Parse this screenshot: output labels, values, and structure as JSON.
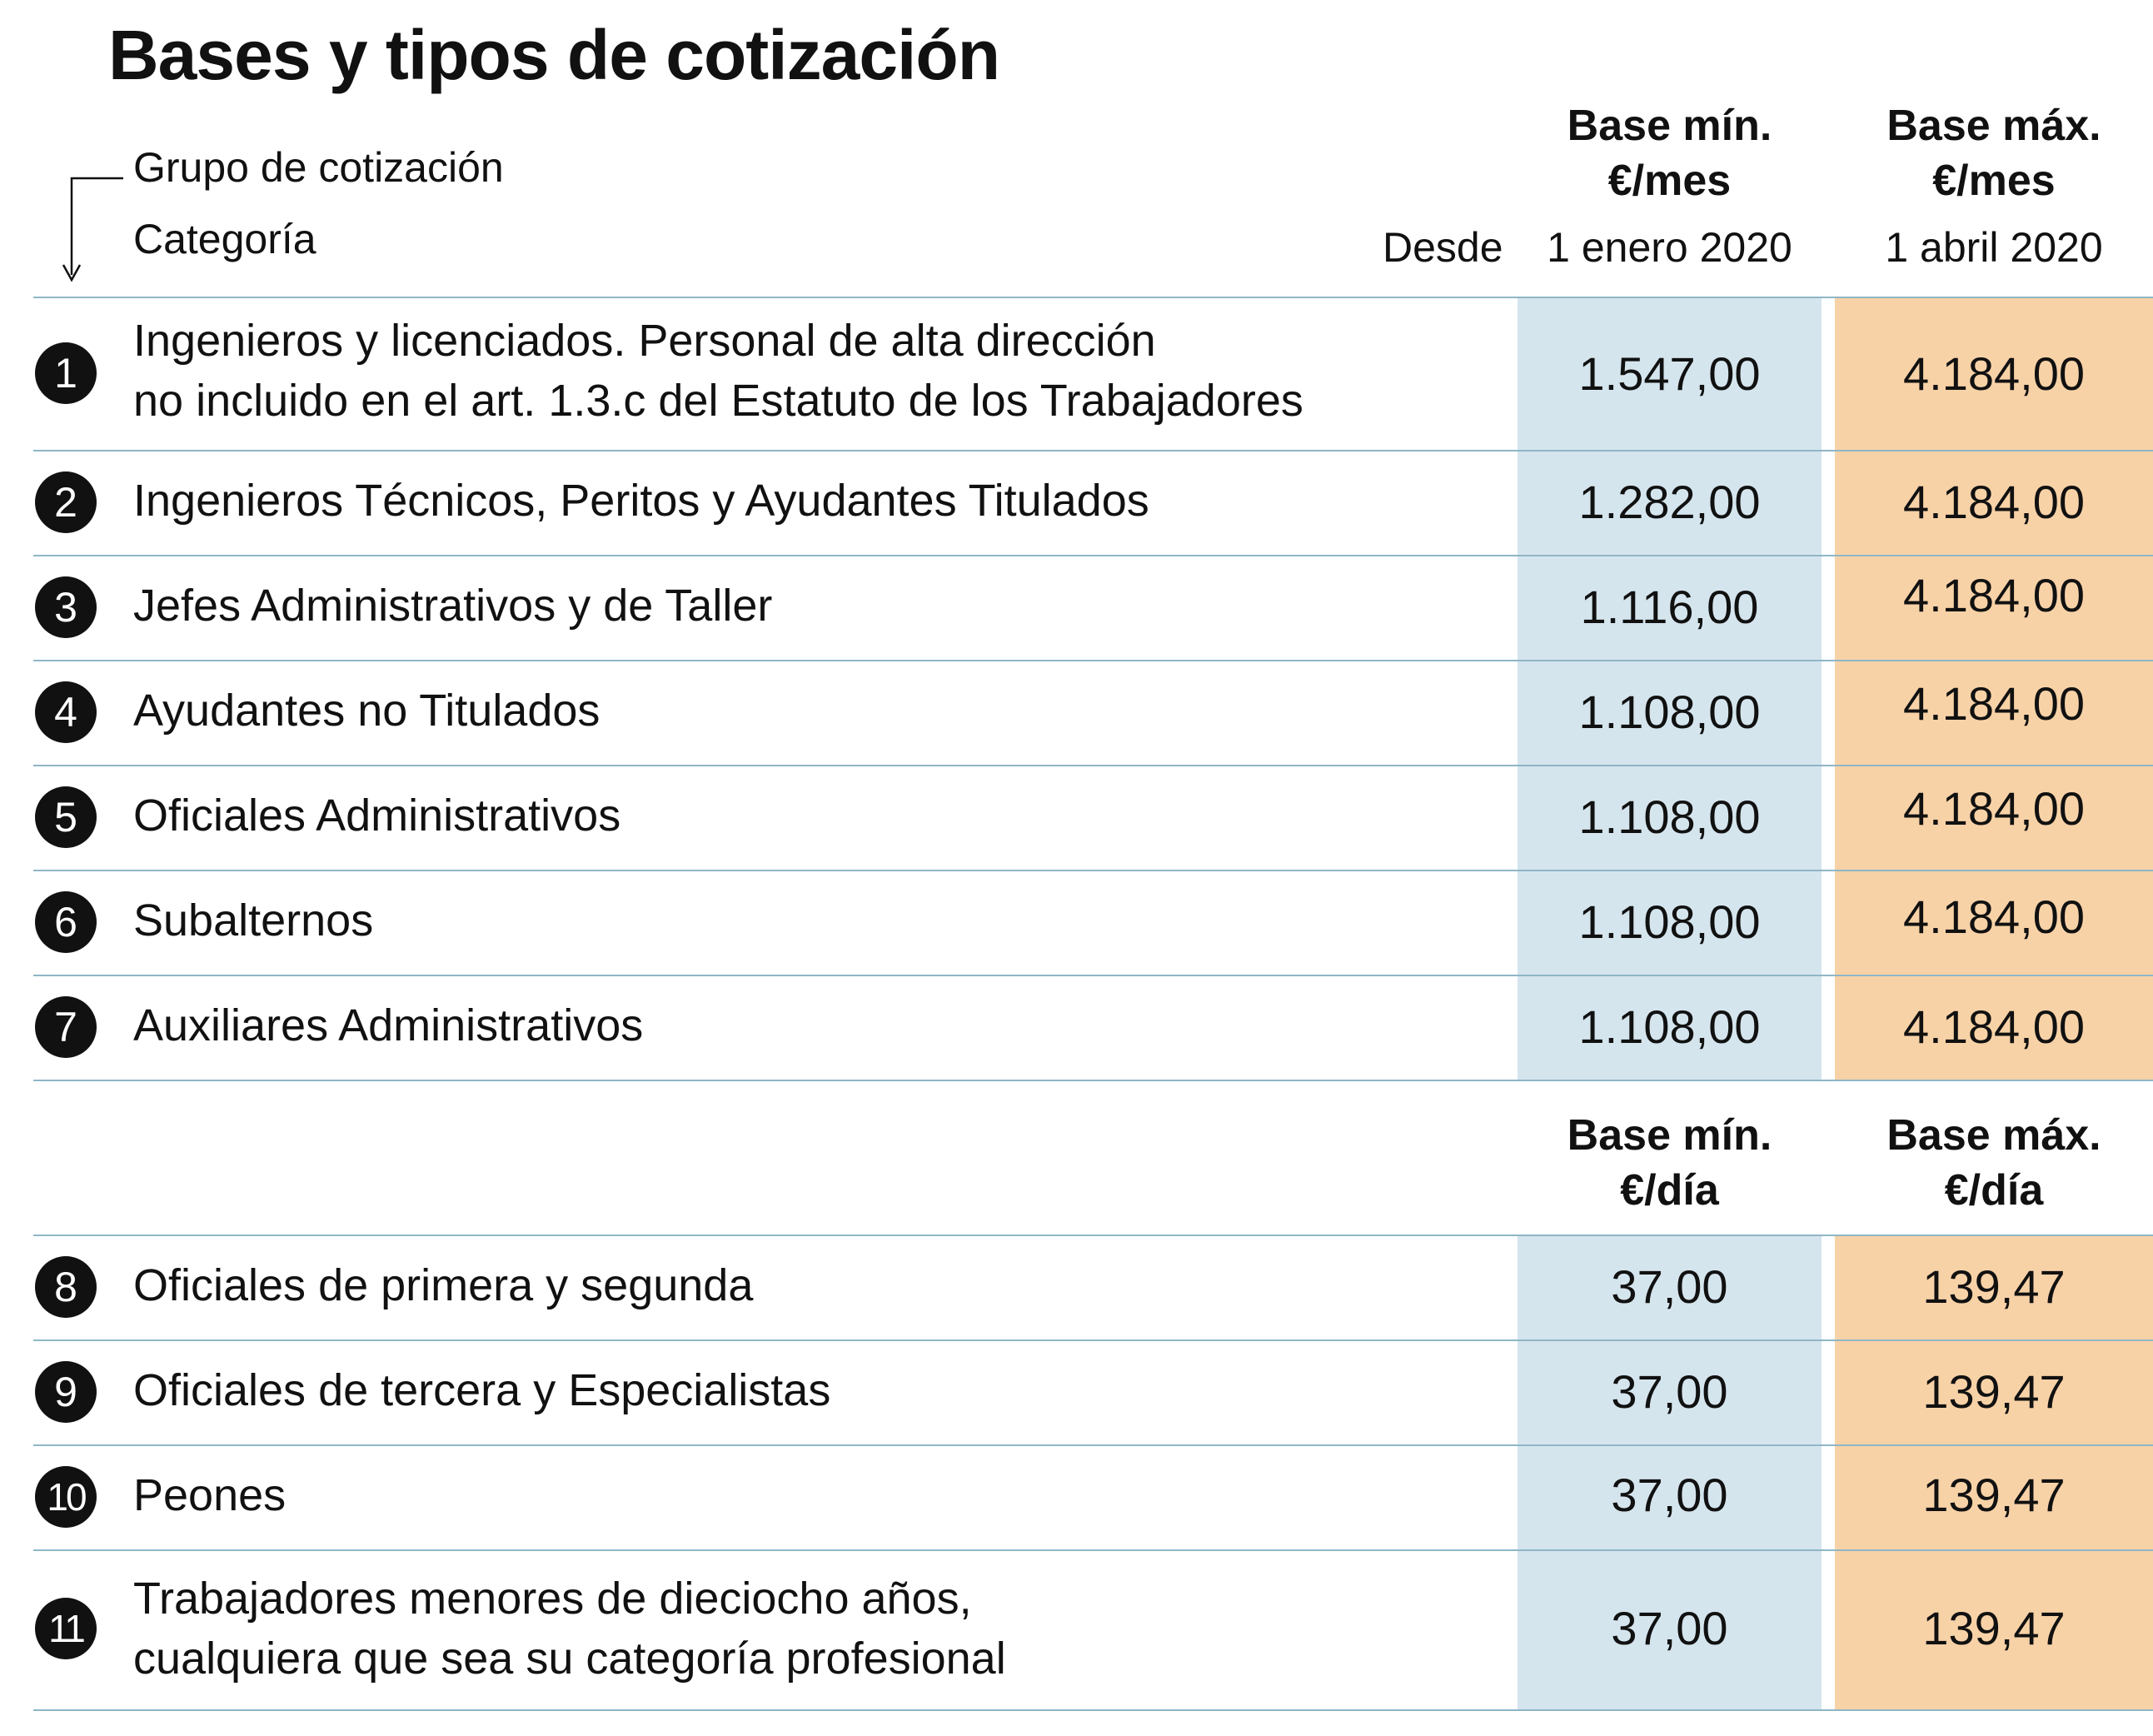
{
  "chart_data": {
    "type": "table",
    "title": "Bases y tipos de cotización",
    "legend": {
      "group_label": "Grupo de cotización",
      "category_label": "Categoría"
    },
    "section1": {
      "desde_label": "Desde",
      "min_header_line1": "Base mín.",
      "min_header_line2": "€/mes",
      "min_date": "1 enero 2020",
      "max_header_line1": "Base máx.",
      "max_header_line2": "€/mes",
      "max_date": "1 abril 2020",
      "rows": [
        {
          "group": "1",
          "line1": "Ingenieros y licenciados. Personal de alta dirección",
          "line2": "no incluido en el art. 1.3.c del Estatuto de los Trabajadores",
          "min": "1.547,00",
          "max": "4.184,00"
        },
        {
          "group": "2",
          "line1": "Ingenieros Técnicos, Peritos y Ayudantes Titulados",
          "line2": "",
          "min": "1.282,00",
          "max": "4.184,00"
        },
        {
          "group": "3",
          "line1": "Jefes Administrativos y de Taller",
          "line2": "",
          "min": "1.116,00",
          "max": "4.184,00"
        },
        {
          "group": "4",
          "line1": "Ayudantes no Titulados",
          "line2": "",
          "min": "1.108,00",
          "max": "4.184,00"
        },
        {
          "group": "5",
          "line1": "Oficiales Administrativos",
          "line2": "",
          "min": "1.108,00",
          "max": "4.184,00"
        },
        {
          "group": "6",
          "line1": "Subalternos",
          "line2": "",
          "min": "1.108,00",
          "max": "4.184,00"
        },
        {
          "group": "7",
          "line1": "Auxiliares Administrativos",
          "line2": "",
          "min": "1.108,00",
          "max": "4.184,00"
        }
      ]
    },
    "section2": {
      "min_header_line1": "Base mín.",
      "min_header_line2": "€/día",
      "max_header_line1": "Base máx.",
      "max_header_line2": "€/día",
      "rows": [
        {
          "group": "8",
          "line1": "Oficiales de primera y segunda",
          "line2": "",
          "min": "37,00",
          "max": "139,47"
        },
        {
          "group": "9",
          "line1": "Oficiales de tercera y Especialistas",
          "line2": "",
          "min": "37,00",
          "max": "139,47"
        },
        {
          "group": "10",
          "line1": "Peones",
          "line2": "",
          "min": "37,00",
          "max": "139,47"
        },
        {
          "group": "11",
          "line1": "Trabajadores menores de dieciocho años,",
          "line2": "cualquiera que sea su categoría profesional",
          "min": "37,00",
          "max": "139,47"
        }
      ]
    },
    "colors": {
      "min_band": "#d5e5ee",
      "max_band": "#f8d2a7",
      "rule": "#8fb6c6"
    }
  }
}
